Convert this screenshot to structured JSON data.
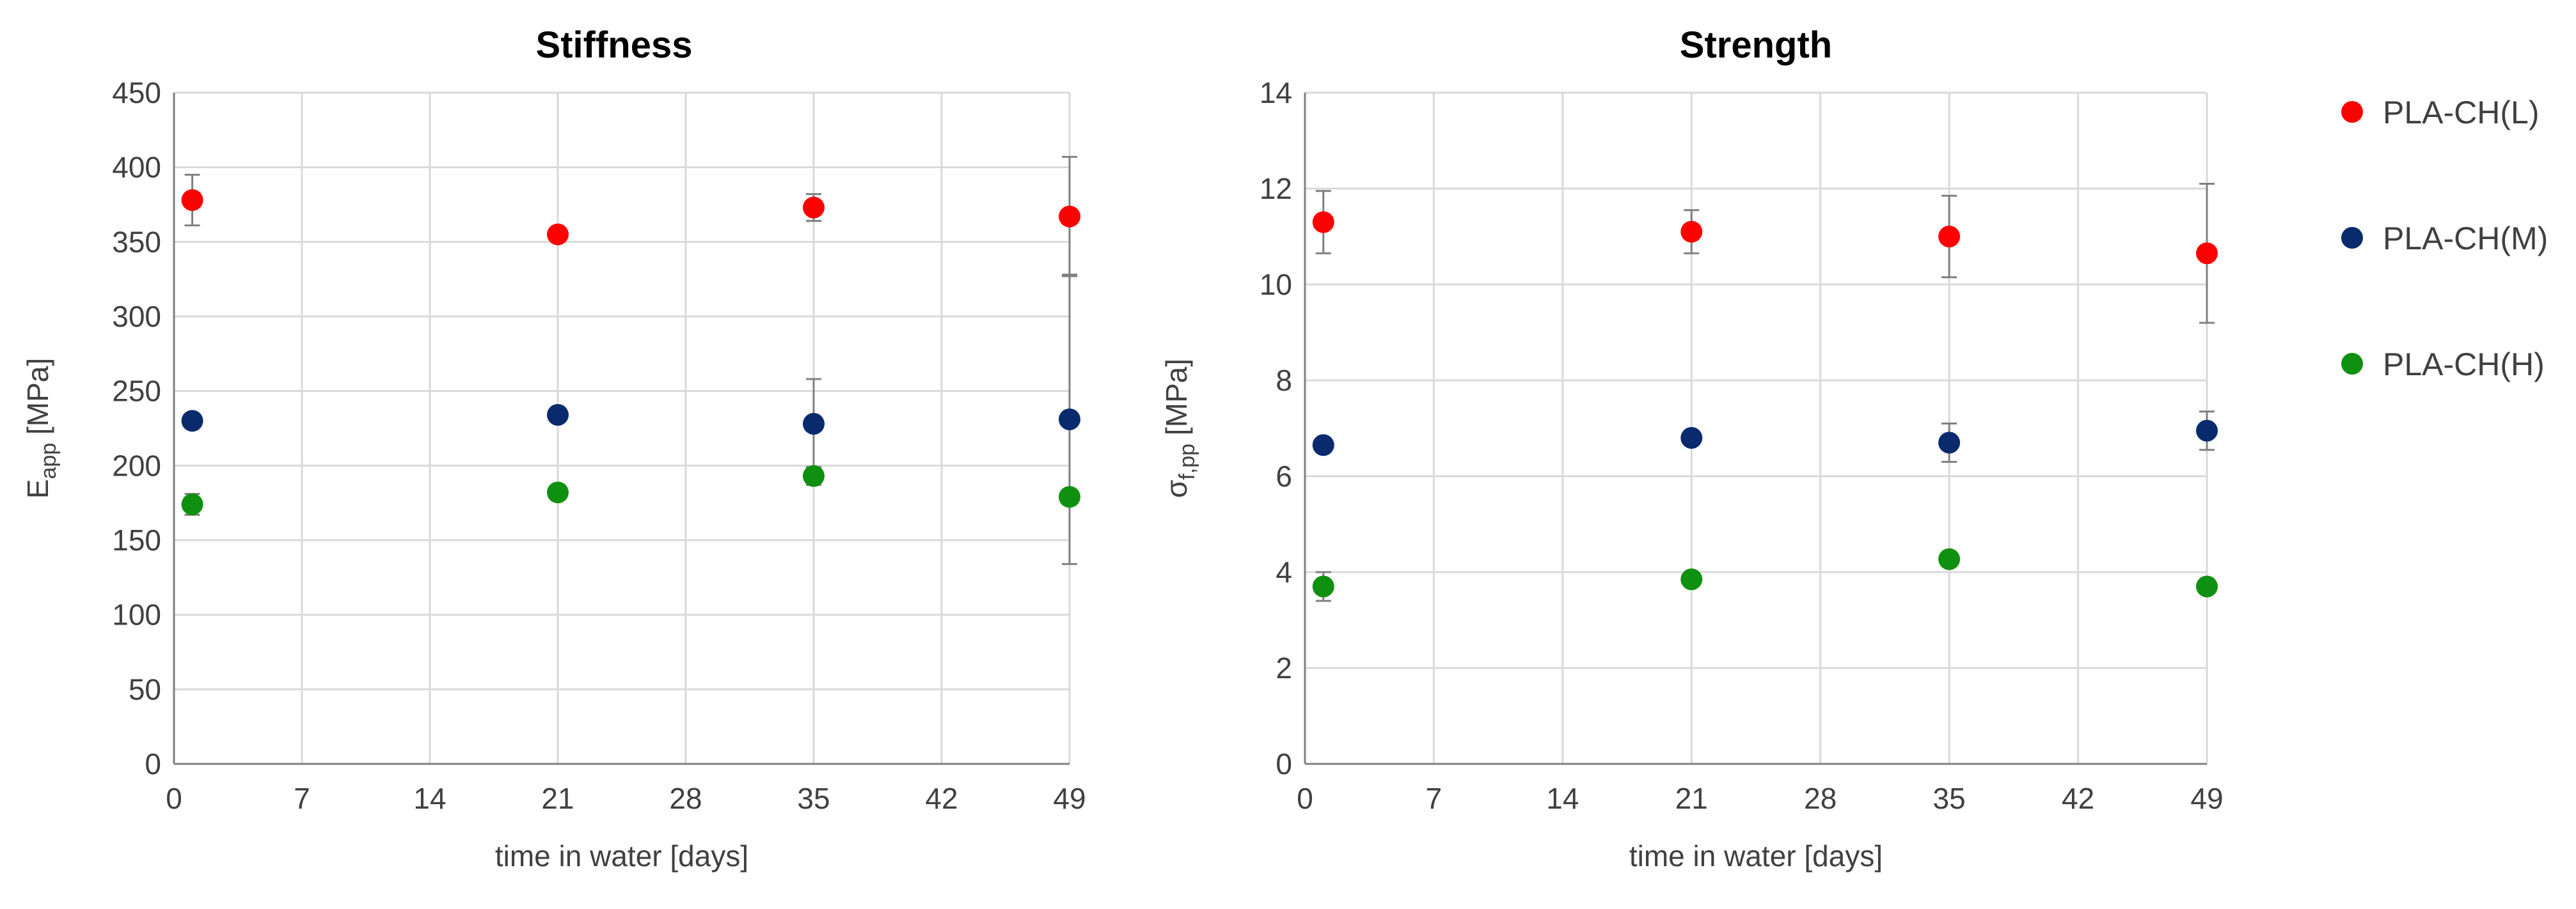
{
  "chart_data": [
    {
      "type": "scatter",
      "title": "Stiffness",
      "xlabel": "time in water [days]",
      "ylabel": "E",
      "ylabel_sub": "app",
      "ylabel_unit": " [MPa]",
      "xlim": [
        0,
        49
      ],
      "ylim": [
        0,
        450
      ],
      "xticks": [
        0,
        7,
        14,
        21,
        28,
        35,
        42,
        49
      ],
      "yticks": [
        0,
        50,
        100,
        150,
        200,
        250,
        300,
        350,
        400,
        450
      ],
      "grid": true,
      "series": [
        {
          "name": "PLA-CH(L)",
          "color": "#ff0000",
          "x": [
            1,
            21,
            35,
            49
          ],
          "y": [
            378,
            355,
            373,
            367
          ],
          "err": [
            17,
            4,
            9,
            40
          ]
        },
        {
          "name": "PLA-CH(M)",
          "color": "#0a2a6e",
          "x": [
            1,
            21,
            35,
            49
          ],
          "y": [
            230,
            234,
            228,
            231
          ],
          "err": [
            4,
            4,
            30,
            97
          ]
        },
        {
          "name": "PLA-CH(H)",
          "color": "#109010",
          "x": [
            1,
            21,
            35,
            49
          ],
          "y": [
            174,
            182,
            193,
            179
          ],
          "err": [
            7,
            4,
            6,
            4
          ]
        }
      ]
    },
    {
      "type": "scatter",
      "title": "Strength",
      "xlabel": "time in water [days]",
      "ylabel": "σ",
      "ylabel_sub": "f,pp",
      "ylabel_unit": " [MPa]",
      "xlim": [
        0,
        49
      ],
      "ylim": [
        0,
        14
      ],
      "xticks": [
        0,
        7,
        14,
        21,
        28,
        35,
        42,
        49
      ],
      "yticks": [
        0,
        2,
        4,
        6,
        8,
        10,
        12,
        14
      ],
      "grid": true,
      "series": [
        {
          "name": "PLA-CH(L)",
          "color": "#ff0000",
          "x": [
            1,
            21,
            35,
            49
          ],
          "y": [
            11.3,
            11.1,
            11.0,
            10.65
          ],
          "err": [
            0.65,
            0.45,
            0.85,
            1.45
          ]
        },
        {
          "name": "PLA-CH(M)",
          "color": "#0a2a6e",
          "x": [
            1,
            21,
            35,
            49
          ],
          "y": [
            6.65,
            6.8,
            6.7,
            6.95
          ],
          "err": [
            0.1,
            0.1,
            0.4,
            0.4
          ]
        },
        {
          "name": "PLA-CH(H)",
          "color": "#109010",
          "x": [
            1,
            21,
            35,
            49
          ],
          "y": [
            3.7,
            3.85,
            4.27,
            3.7
          ],
          "err": [
            0.3,
            0.05,
            0.15,
            0.05
          ]
        }
      ]
    }
  ],
  "legend": {
    "placement": "right",
    "entries": [
      {
        "label": "PLA-CH(L)",
        "color": "#ff0000"
      },
      {
        "label": "PLA-CH(M)",
        "color": "#0a2a6e"
      },
      {
        "label": "PLA-CH(H)",
        "color": "#109010"
      }
    ]
  }
}
